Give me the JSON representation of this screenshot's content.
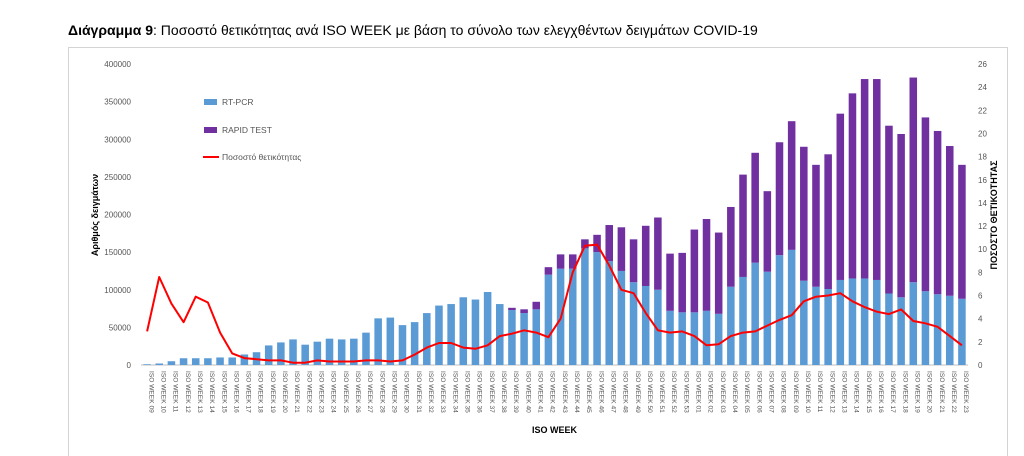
{
  "title_prefix": "Διάγραμμα 9",
  "title_rest": ": Ποσοστό θετικότητας ανά ISO WEEK με βάση το σύνολο των ελεγχθέντων δειγμάτων COVID-19",
  "colors": {
    "rtpcr": "#5b9bd5",
    "rapid": "#7030a0",
    "line": "#ff0000"
  },
  "chart_data": {
    "type": "bar",
    "stacked": true,
    "xlabel": "ISO WEEK",
    "ylabel": "Αριθμός δειγμάτων",
    "y2label": "ΠΟΣΟΣΤΟ ΘΕΤΙΚΟΤΗΤΑΣ",
    "ylim": [
      0,
      400000
    ],
    "y2lim": [
      0,
      26
    ],
    "yticks": [
      0,
      50000,
      100000,
      150000,
      200000,
      250000,
      300000,
      350000,
      400000
    ],
    "y2ticks": [
      0,
      2,
      4,
      6,
      8,
      10,
      12,
      14,
      16,
      18,
      20,
      22,
      24,
      26
    ],
    "legend_position": "top-left",
    "categories": [
      "ISO WEEK 09",
      "ISO WEEK 10",
      "ISO WEEK 11",
      "ISO WEEK 12",
      "ISO WEEK 13",
      "ISO WEEK 14",
      "ISO WEEK 15",
      "ISO WEEK 16",
      "ISO WEEK 17",
      "ISO WEEK 18",
      "ISO WEEK 19",
      "ISO WEEK 20",
      "ISO WEEK 21",
      "ISO WEEK 22",
      "ISO WEEK 23",
      "ISO WEEK 24",
      "ISO WEEK 25",
      "ISO WEEK 26",
      "ISO WEEK 27",
      "ISO WEEK 28",
      "ISO WEEK 29",
      "ISO WEEK 30",
      "ISO WEEK 31",
      "ISO WEEK 32",
      "ISO WEEK 33",
      "ISO WEEK 34",
      "ISO WEEK 35",
      "ISO WEEK 36",
      "ISO WEEK 37",
      "ISO WEEK 38",
      "ISO WEEK 39",
      "ISO WEEK 40",
      "ISO WEEK 41",
      "ISO WEEK 42",
      "ISO WEEK 43",
      "ISO WEEK 44",
      "ISO WEEK 45",
      "ISO WEEK 46",
      "ISO WEEK 47",
      "ISO WEEK 48",
      "ISO WEEK 49",
      "ISO WEEK 50",
      "ISO WEEK 51",
      "ISO WEEK 52",
      "ISO WEEK 53",
      "ISO WEEK 01",
      "ISO WEEK 02",
      "ISO WEEK 03",
      "ISO WEEK 04",
      "ISO WEEK 05",
      "ISO WEEK 06",
      "ISO WEEK 07",
      "ISO WEEK 08",
      "ISO WEEK 09",
      "ISO WEEK 10",
      "ISO WEEK 11",
      "ISO WEEK 12",
      "ISO WEEK 13",
      "ISO WEEK 14",
      "ISO WEEK 15",
      "ISO WEEK 16",
      "ISO WEEK 17",
      "ISO WEEK 18",
      "ISO WEEK 19",
      "ISO WEEK 20",
      "ISO WEEK 21",
      "ISO WEEK 22",
      "ISO WEEK 23"
    ],
    "series": [
      {
        "name": "RT-PCR",
        "axis": "left",
        "kind": "bar",
        "values": [
          1000,
          2000,
          5000,
          9000,
          9000,
          9000,
          10000,
          10000,
          14000,
          17000,
          26000,
          30000,
          34000,
          27000,
          31000,
          35000,
          34000,
          35000,
          43000,
          62000,
          63000,
          53000,
          57000,
          69000,
          79000,
          81000,
          90000,
          87000,
          97000,
          81000,
          73000,
          69000,
          74000,
          120000,
          128000,
          128000,
          155000,
          150000,
          138000,
          125000,
          110000,
          105000,
          100000,
          72000,
          70000,
          70000,
          72000,
          68000,
          104000,
          117000,
          136000,
          124000,
          146000,
          153000,
          112000,
          104000,
          101000,
          113000,
          115000,
          115000,
          113000,
          95000,
          90000,
          110000,
          98000,
          94000,
          92000,
          88000
        ]
      },
      {
        "name": "RAPID TEST",
        "axis": "left",
        "kind": "bar",
        "values": [
          0,
          0,
          0,
          0,
          0,
          0,
          0,
          0,
          0,
          0,
          0,
          0,
          0,
          0,
          0,
          0,
          0,
          0,
          0,
          0,
          0,
          0,
          0,
          0,
          0,
          0,
          0,
          0,
          0,
          0,
          3000,
          5000,
          10000,
          10000,
          19000,
          19000,
          12000,
          23000,
          48000,
          58000,
          57000,
          80000,
          96000,
          76000,
          79000,
          110000,
          122000,
          108000,
          106000,
          136000,
          146000,
          107000,
          150000,
          171000,
          178000,
          162000,
          179000,
          221000,
          246000,
          265000,
          267000,
          223000,
          217000,
          272000,
          231000,
          217000,
          199000,
          178000
        ]
      },
      {
        "name": "Ποσοστό θετικότητας",
        "axis": "right",
        "kind": "line",
        "values": [
          2.9,
          7.6,
          5.3,
          3.7,
          5.9,
          5.4,
          2.8,
          1.0,
          0.6,
          0.5,
          0.4,
          0.4,
          0.2,
          0.2,
          0.4,
          0.3,
          0.3,
          0.3,
          0.4,
          0.4,
          0.3,
          0.4,
          0.9,
          1.5,
          1.9,
          1.9,
          1.5,
          1.4,
          1.7,
          2.5,
          2.7,
          3.0,
          2.8,
          2.4,
          4.0,
          8.0,
          10.3,
          10.4,
          8.6,
          6.5,
          6.2,
          4.5,
          3.0,
          2.8,
          2.9,
          2.5,
          1.7,
          1.8,
          2.5,
          2.8,
          2.9,
          3.4,
          3.9,
          4.3,
          5.5,
          5.9,
          6.0,
          6.2,
          5.5,
          5.0,
          4.6,
          4.4,
          4.8,
          3.8,
          3.6,
          3.3,
          2.5,
          1.7
        ]
      }
    ]
  }
}
